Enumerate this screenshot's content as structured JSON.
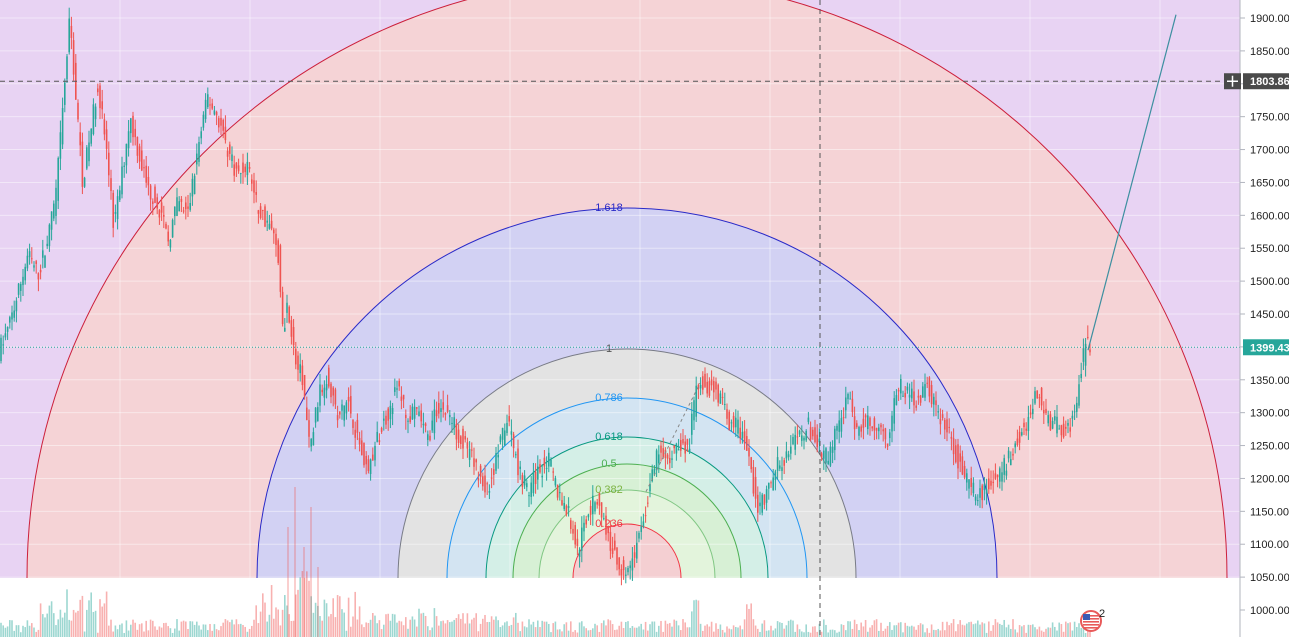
{
  "chart_data": {
    "type": "candlestick",
    "y_axis": {
      "position": "right",
      "range": [
        990,
        1920
      ],
      "ticks": [
        "1000.00",
        "1050.00",
        "1100.00",
        "1150.00",
        "1200.00",
        "1250.00",
        "1300.00",
        "1350.00",
        "1400.00",
        "1450.00",
        "1500.00",
        "1550.00",
        "1600.00",
        "1650.00",
        "1700.00",
        "1750.00",
        "1800.00",
        "1850.00",
        "1900.00"
      ],
      "grid": true
    },
    "markers": {
      "crosshair_price": "1803.86",
      "last_price": "1399.43"
    },
    "fib_levels": [
      "0.236",
      "0.382",
      "0.5",
      "0.618",
      "0.786",
      "1",
      "1.618"
    ],
    "colors": {
      "up": "#26a69a",
      "down": "#ef5350",
      "last_price_tag": "#26a69a",
      "crosshair_tag": "#4a4a4a",
      "fib_0.236": "#f23645",
      "fib_0.382": "#81c784",
      "fib_0.5": "#4caf50",
      "fib_0.618": "#089981",
      "fib_0.786": "#2196f3",
      "fib_1": "#787b86",
      "fib_1.618": "#2a2ac8",
      "fib_outer": "#cc1f3b"
    },
    "price_path": [
      [
        0,
        1390
      ],
      [
        10,
        1425
      ],
      [
        20,
        1480
      ],
      [
        30,
        1540
      ],
      [
        40,
        1510
      ],
      [
        50,
        1560
      ],
      [
        58,
        1630
      ],
      [
        65,
        1760
      ],
      [
        72,
        1900
      ],
      [
        78,
        1780
      ],
      [
        85,
        1650
      ],
      [
        92,
        1720
      ],
      [
        100,
        1800
      ],
      [
        108,
        1710
      ],
      [
        116,
        1580
      ],
      [
        124,
        1660
      ],
      [
        132,
        1750
      ],
      [
        140,
        1700
      ],
      [
        150,
        1640
      ],
      [
        160,
        1620
      ],
      [
        170,
        1560
      ],
      [
        180,
        1620
      ],
      [
        190,
        1600
      ],
      [
        200,
        1700
      ],
      [
        210,
        1780
      ],
      [
        220,
        1750
      ],
      [
        230,
        1700
      ],
      [
        240,
        1660
      ],
      [
        250,
        1680
      ],
      [
        260,
        1610
      ],
      [
        270,
        1590
      ],
      [
        280,
        1550
      ],
      [
        285,
        1420
      ],
      [
        290,
        1470
      ],
      [
        297,
        1380
      ],
      [
        305,
        1350
      ],
      [
        312,
        1240
      ],
      [
        320,
        1320
      ],
      [
        330,
        1360
      ],
      [
        340,
        1290
      ],
      [
        350,
        1320
      ],
      [
        360,
        1260
      ],
      [
        370,
        1210
      ],
      [
        380,
        1260
      ],
      [
        390,
        1300
      ],
      [
        400,
        1340
      ],
      [
        410,
        1290
      ],
      [
        420,
        1300
      ],
      [
        430,
        1260
      ],
      [
        440,
        1310
      ],
      [
        450,
        1300
      ],
      [
        460,
        1270
      ],
      [
        470,
        1240
      ],
      [
        480,
        1210
      ],
      [
        490,
        1180
      ],
      [
        500,
        1240
      ],
      [
        510,
        1290
      ],
      [
        520,
        1220
      ],
      [
        530,
        1180
      ],
      [
        540,
        1210
      ],
      [
        550,
        1230
      ],
      [
        560,
        1180
      ],
      [
        570,
        1150
      ],
      [
        580,
        1090
      ],
      [
        590,
        1150
      ],
      [
        600,
        1170
      ],
      [
        610,
        1110
      ],
      [
        620,
        1070
      ],
      [
        630,
        1060
      ],
      [
        640,
        1100
      ],
      [
        650,
        1170
      ],
      [
        660,
        1240
      ],
      [
        670,
        1220
      ],
      [
        680,
        1260
      ],
      [
        690,
        1240
      ],
      [
        700,
        1350
      ],
      [
        710,
        1340
      ],
      [
        720,
        1330
      ],
      [
        730,
        1290
      ],
      [
        740,
        1280
      ],
      [
        750,
        1240
      ],
      [
        760,
        1150
      ],
      [
        770,
        1180
      ],
      [
        780,
        1220
      ],
      [
        790,
        1240
      ],
      [
        800,
        1260
      ],
      [
        810,
        1280
      ],
      [
        820,
        1250
      ],
      [
        830,
        1230
      ],
      [
        840,
        1280
      ],
      [
        850,
        1320
      ],
      [
        860,
        1270
      ],
      [
        870,
        1290
      ],
      [
        880,
        1280
      ],
      [
        890,
        1260
      ],
      [
        900,
        1340
      ],
      [
        910,
        1330
      ],
      [
        920,
        1320
      ],
      [
        930,
        1340
      ],
      [
        940,
        1300
      ],
      [
        950,
        1270
      ],
      [
        960,
        1230
      ],
      [
        970,
        1190
      ],
      [
        980,
        1170
      ],
      [
        990,
        1190
      ],
      [
        1000,
        1200
      ],
      [
        1010,
        1230
      ],
      [
        1020,
        1260
      ],
      [
        1030,
        1290
      ],
      [
        1040,
        1330
      ],
      [
        1050,
        1290
      ],
      [
        1060,
        1280
      ],
      [
        1070,
        1270
      ],
      [
        1080,
        1330
      ],
      [
        1088,
        1410
      ],
      [
        1092,
        1400
      ]
    ]
  }
}
